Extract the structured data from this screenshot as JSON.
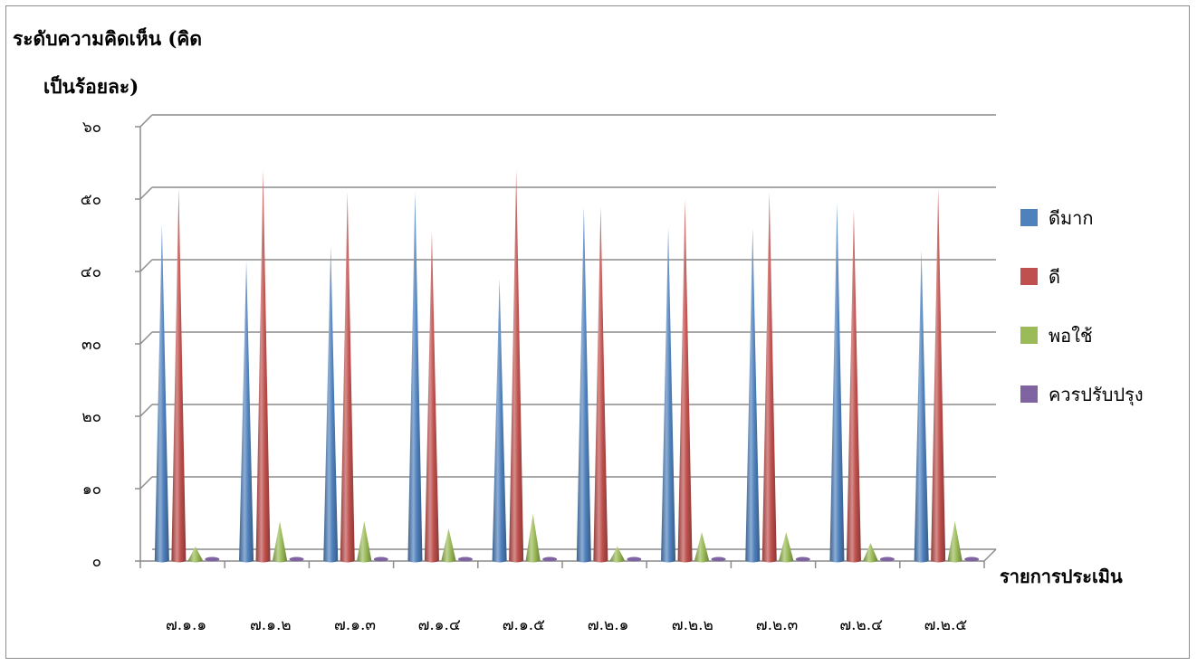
{
  "chart_data": {
    "type": "bar",
    "subtype": "3d-cone",
    "ylabel_lines": [
      "ระดับความคิดเห็น (คิด",
      "เป็นร้อยละ)"
    ],
    "xlabel": "รายการประเมิน",
    "y_ticks": [
      "๐",
      "๑๐",
      "๒๐",
      "๓๐",
      "๔๐",
      "๕๐",
      "๖๐"
    ],
    "ylim": [
      0,
      60
    ],
    "grid": true,
    "legend_position": "right",
    "categories": [
      "๗.๑.๑",
      "๗.๑.๒",
      "๗.๑.๓",
      "๗.๑.๔",
      "๗.๑.๕",
      "๗.๒.๑",
      "๗.๒.๒",
      "๗.๒.๓",
      "๗.๒.๔",
      "๗.๒.๕"
    ],
    "series": [
      {
        "name": "ดีมาก",
        "color": "#4f81bd",
        "values": [
          46.5,
          41.5,
          43.5,
          51,
          39,
          49,
          46,
          46,
          49.5,
          43
        ]
      },
      {
        "name": "ดี",
        "color": "#c0504d",
        "values": [
          51.5,
          54,
          51,
          45.5,
          54,
          49,
          50,
          51,
          48.5,
          51.5
        ]
      },
      {
        "name": "พอใช้",
        "color": "#9bbb59",
        "values": [
          2,
          5.5,
          5.5,
          4.5,
          6.5,
          2,
          4,
          4,
          2.5,
          5.5
        ]
      },
      {
        "name": "ควรปรับปรุง",
        "color": "#8064a2",
        "values": [
          0.5,
          0.5,
          0.5,
          0.5,
          0.5,
          0.5,
          0.5,
          0.5,
          0.5,
          0.5
        ]
      }
    ]
  }
}
